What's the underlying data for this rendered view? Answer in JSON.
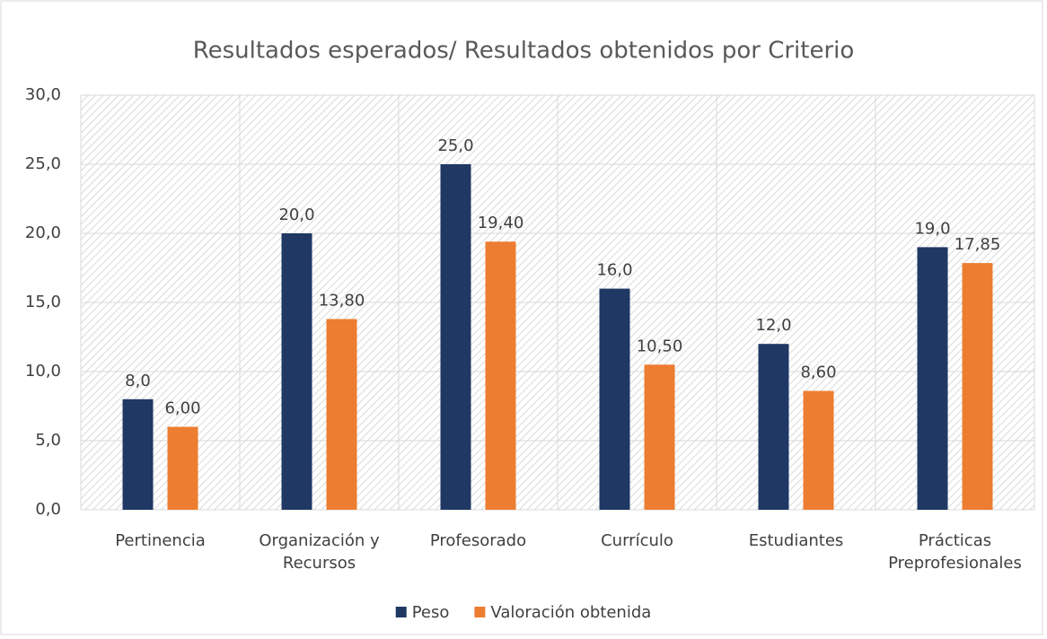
{
  "chart_data": {
    "type": "bar",
    "title": "Resultados esperados/ Resultados obtenidos  por Criterio",
    "categories": [
      "Pertinencia",
      "Organización y Recursos",
      "Profesorado",
      "Currículo",
      "Estudiantes",
      "Prácticas Preprofesionales"
    ],
    "series": [
      {
        "name": "Peso",
        "color": "#1f3864",
        "values": [
          8,
          20,
          25,
          16,
          12,
          19
        ],
        "value_labels": [
          "8,0",
          "20,0",
          "25,0",
          "16,0",
          "12,0",
          "19,0"
        ]
      },
      {
        "name": "Valoración obtenida",
        "color": "#ed7d31",
        "values": [
          6,
          13.8,
          19.4,
          10.5,
          8.6,
          17.85
        ],
        "value_labels": [
          "6,00",
          "13,80",
          "19,40",
          "10,50",
          "8,60",
          "17,85"
        ]
      }
    ],
    "ylim": [
      0,
      30
    ],
    "yticks": [
      {
        "value": 0,
        "label": "0,0"
      },
      {
        "value": 5,
        "label": "5,0"
      },
      {
        "value": 10,
        "label": "10,0"
      },
      {
        "value": 15,
        "label": "15,0"
      },
      {
        "value": 20,
        "label": "20,0"
      },
      {
        "value": 25,
        "label": "25,0"
      },
      {
        "value": 30,
        "label": "30,0"
      }
    ],
    "grid": true,
    "legend": "bottom"
  }
}
